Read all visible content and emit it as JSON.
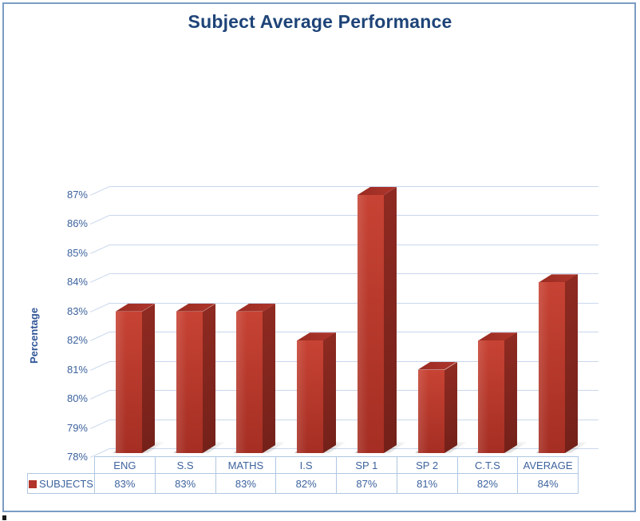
{
  "chart_data": {
    "type": "bar",
    "effect": "3d",
    "title": "Subject Average Performance",
    "xlabel": "",
    "ylabel": "Percentage",
    "categories": [
      "ENG",
      "S.S",
      "MATHS",
      "I.S",
      "SP 1",
      "SP 2",
      "C.T.S",
      "AVERAGE"
    ],
    "series": [
      {
        "name": "SUBJECTS",
        "values": [
          83,
          83,
          83,
          82,
          87,
          81,
          82,
          84
        ]
      }
    ],
    "value_labels": [
      "83%",
      "83%",
      "83%",
      "82%",
      "87%",
      "81%",
      "82%",
      "84%"
    ],
    "y_ticks": [
      "87%",
      "86%",
      "85%",
      "84%",
      "83%",
      "82%",
      "81%",
      "80%",
      "79%",
      "78%"
    ],
    "ylim": [
      78,
      87
    ],
    "grid": true,
    "legend_position": "bottom-data-table",
    "colors": {
      "bar": "#C0392B",
      "bar_side": "#7E241E",
      "title_text": "#1E4478",
      "axis_text": "#3D639E",
      "gridline": "#C9D7EC",
      "table_border": "#AFC7E2",
      "page_border": "#7B9CC4",
      "legend_swatch": "#B2342A"
    }
  }
}
